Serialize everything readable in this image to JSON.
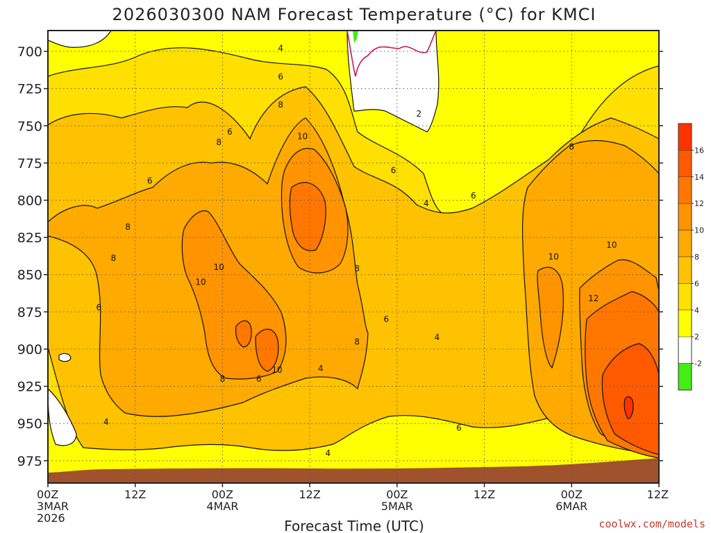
{
  "chart_data": {
    "type": "contour",
    "title": "2026030300 NAM Forecast Temperature (°C) for KMCI",
    "xlabel": "Forecast Time (UTC)",
    "credit": "coolwx.com/models",
    "y_ticks": [
      "700",
      "725",
      "750",
      "775",
      "800",
      "825",
      "850",
      "875",
      "900",
      "925",
      "950",
      "975"
    ],
    "y_values": [
      700,
      725,
      750,
      775,
      800,
      825,
      850,
      875,
      900,
      925,
      950,
      975
    ],
    "ylim": [
      686,
      990
    ],
    "xlim": [
      0,
      84
    ],
    "x_ticks": [
      {
        "hour": 0,
        "lines": [
          "00Z",
          "3MAR",
          "2026"
        ]
      },
      {
        "hour": 12,
        "lines": [
          "12Z"
        ]
      },
      {
        "hour": 24,
        "lines": [
          "00Z",
          "4MAR"
        ]
      },
      {
        "hour": 36,
        "lines": [
          "12Z"
        ]
      },
      {
        "hour": 48,
        "lines": [
          "00Z",
          "5MAR"
        ]
      },
      {
        "hour": 60,
        "lines": [
          "12Z"
        ]
      },
      {
        "hour": 72,
        "lines": [
          "00Z",
          "6MAR"
        ]
      },
      {
        "hour": 84,
        "lines": [
          "12Z"
        ]
      }
    ],
    "colorbar": {
      "labels": [
        "16",
        "14",
        "12",
        "10",
        "8",
        "6",
        "4",
        "2",
        "-2"
      ],
      "bins": [
        {
          "from": 16,
          "to": 18,
          "color": "#ff3300"
        },
        {
          "from": 14,
          "to": 16,
          "color": "#ff5a00"
        },
        {
          "from": 12,
          "to": 14,
          "color": "#ff7700"
        },
        {
          "from": 10,
          "to": 12,
          "color": "#ff9300"
        },
        {
          "from": 8,
          "to": 10,
          "color": "#ffaa00"
        },
        {
          "from": 6,
          "to": 8,
          "color": "#ffc200"
        },
        {
          "from": 4,
          "to": 6,
          "color": "#ffe000"
        },
        {
          "from": 2,
          "to": 4,
          "color": "#ffff00"
        },
        {
          "from": -2,
          "to": 2,
          "color": "#ffffff"
        },
        {
          "from": -4,
          "to": -2,
          "color": "#44ee11"
        }
      ]
    },
    "ground_color": "#a0522d",
    "zero_line_color": "#c2185b",
    "contour_labels": [
      {
        "text": "4",
        "hour": 32,
        "p": 698
      },
      {
        "text": "6",
        "hour": 32,
        "p": 717
      },
      {
        "text": "8",
        "hour": 32,
        "p": 736
      },
      {
        "text": "10",
        "hour": 35,
        "p": 757
      },
      {
        "text": "6",
        "hour": 25,
        "p": 754
      },
      {
        "text": "8",
        "hour": 23.5,
        "p": 761
      },
      {
        "text": "6",
        "hour": 14,
        "p": 787
      },
      {
        "text": "2",
        "hour": 51,
        "p": 742
      },
      {
        "text": "6",
        "hour": 47.5,
        "p": 780
      },
      {
        "text": "4",
        "hour": 52,
        "p": 802
      },
      {
        "text": "6",
        "hour": 58.5,
        "p": 797
      },
      {
        "text": "8",
        "hour": 11,
        "p": 818
      },
      {
        "text": "8",
        "hour": 9,
        "p": 839
      },
      {
        "text": "10",
        "hour": 23.5,
        "p": 845
      },
      {
        "text": "10",
        "hour": 21,
        "p": 855
      },
      {
        "text": "6",
        "hour": 7,
        "p": 872
      },
      {
        "text": "8",
        "hour": 42.5,
        "p": 846
      },
      {
        "text": "8",
        "hour": 42.5,
        "p": 895
      },
      {
        "text": "6",
        "hour": 46.5,
        "p": 880
      },
      {
        "text": "4",
        "hour": 53.5,
        "p": 892
      },
      {
        "text": "10",
        "hour": 31.5,
        "p": 914
      },
      {
        "text": "6",
        "hour": 29,
        "p": 920
      },
      {
        "text": "8",
        "hour": 24,
        "p": 920
      },
      {
        "text": "4",
        "hour": 37.5,
        "p": 913
      },
      {
        "text": "4",
        "hour": 8,
        "p": 949
      },
      {
        "text": "6",
        "hour": 56.5,
        "p": 953
      },
      {
        "text": "4",
        "hour": 38.5,
        "p": 970
      },
      {
        "text": "8",
        "hour": 72,
        "p": 764
      },
      {
        "text": "10",
        "hour": 77.5,
        "p": 830
      },
      {
        "text": "10",
        "hour": 69.5,
        "p": 838
      },
      {
        "text": "12",
        "hour": 75,
        "p": 866
      }
    ]
  }
}
